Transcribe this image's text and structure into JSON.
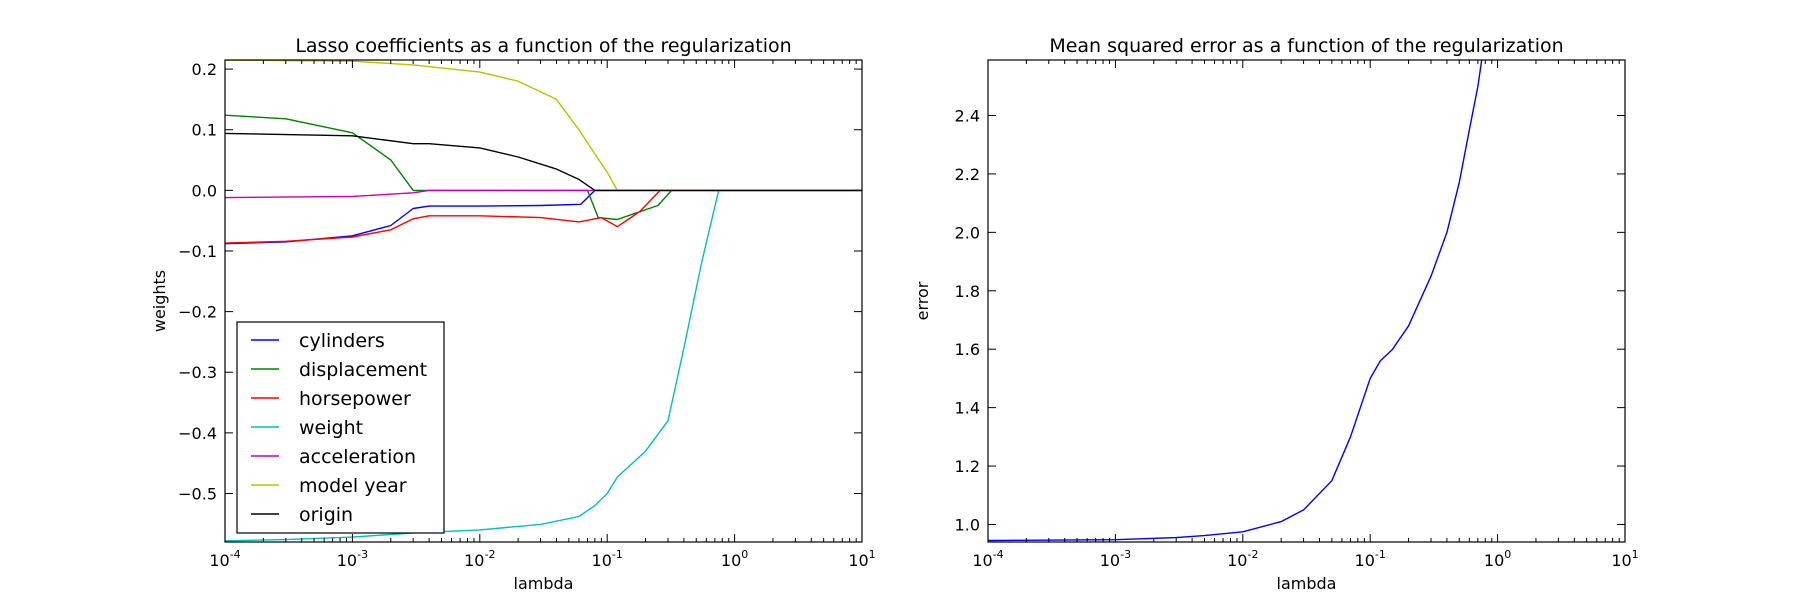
{
  "chart_data": [
    {
      "type": "line",
      "title": "Lasso coefficients as a function of the regularization",
      "xlabel": "lambda",
      "ylabel": "weights",
      "xscale": "log",
      "xlim": [
        0.0001,
        10
      ],
      "ylim": [
        -0.58,
        0.215
      ],
      "x_ticks": [
        {
          "base": "10",
          "exp": "-4",
          "value": 0.0001
        },
        {
          "base": "10",
          "exp": "-3",
          "value": 0.001
        },
        {
          "base": "10",
          "exp": "-2",
          "value": 0.01
        },
        {
          "base": "10",
          "exp": "-1",
          "value": 0.1
        },
        {
          "base": "10",
          "exp": "0",
          "value": 1
        },
        {
          "base": "10",
          "exp": "1",
          "value": 10
        }
      ],
      "y_ticks": [
        {
          "label": "0.2",
          "value": 0.2
        },
        {
          "label": "0.1",
          "value": 0.1
        },
        {
          "label": "0.0",
          "value": 0.0
        },
        {
          "label": "−0.1",
          "value": -0.1
        },
        {
          "label": "−0.2",
          "value": -0.2
        },
        {
          "label": "−0.3",
          "value": -0.3
        },
        {
          "label": "−0.4",
          "value": -0.4
        },
        {
          "label": "−0.5",
          "value": -0.5
        }
      ],
      "grid": false,
      "legend_position": "lower-left",
      "series": [
        {
          "name": "cylinders",
          "color": "#0000ff",
          "x": [
            0.0001,
            0.0003,
            0.001,
            0.002,
            0.003,
            0.004,
            0.01,
            0.03,
            0.062,
            0.08,
            0.1,
            0.3,
            1,
            10
          ],
          "y": [
            -0.088,
            -0.085,
            -0.075,
            -0.058,
            -0.03,
            -0.026,
            -0.026,
            -0.025,
            -0.023,
            0,
            0,
            0,
            0,
            0
          ]
        },
        {
          "name": "displacement",
          "color": "#008000",
          "x": [
            0.0001,
            0.0003,
            0.001,
            0.002,
            0.003,
            0.004,
            0.01,
            0.03,
            0.07,
            0.085,
            0.12,
            0.25,
            0.32,
            1,
            10
          ],
          "y": [
            0.124,
            0.118,
            0.095,
            0.05,
            0.0,
            0,
            0,
            0,
            0,
            -0.045,
            -0.048,
            -0.025,
            0,
            0,
            0
          ]
        },
        {
          "name": "horsepower",
          "color": "#ff0000",
          "x": [
            0.0001,
            0.0003,
            0.001,
            0.002,
            0.003,
            0.004,
            0.01,
            0.03,
            0.06,
            0.09,
            0.12,
            0.18,
            0.26,
            1,
            10
          ],
          "y": [
            -0.087,
            -0.084,
            -0.077,
            -0.065,
            -0.047,
            -0.042,
            -0.042,
            -0.045,
            -0.052,
            -0.045,
            -0.06,
            -0.035,
            0,
            0,
            0
          ]
        },
        {
          "name": "weight",
          "color": "#00bfbf",
          "x": [
            0.0001,
            0.0003,
            0.001,
            0.003,
            0.01,
            0.03,
            0.06,
            0.08,
            0.1,
            0.12,
            0.2,
            0.3,
            0.4,
            0.55,
            0.75,
            1,
            10
          ],
          "y": [
            -0.578,
            -0.576,
            -0.572,
            -0.565,
            -0.56,
            -0.551,
            -0.538,
            -0.52,
            -0.5,
            -0.473,
            -0.43,
            -0.38,
            -0.26,
            -0.12,
            0,
            0,
            0
          ]
        },
        {
          "name": "acceleration",
          "color": "#bf00bf",
          "x": [
            0.0001,
            0.001,
            0.003,
            0.004,
            0.01,
            0.1,
            1,
            10
          ],
          "y": [
            -0.012,
            -0.01,
            -0.004,
            0,
            0,
            0,
            0,
            0
          ]
        },
        {
          "name": "model year",
          "color": "#bfbf00",
          "x": [
            0.0001,
            0.001,
            0.003,
            0.01,
            0.02,
            0.04,
            0.06,
            0.08,
            0.1,
            0.12,
            1,
            10
          ],
          "y": [
            0.215,
            0.213,
            0.207,
            0.195,
            0.18,
            0.15,
            0.1,
            0.06,
            0.03,
            0.0,
            0,
            0
          ]
        },
        {
          "name": "origin",
          "color": "#000000",
          "x": [
            0.0001,
            0.001,
            0.003,
            0.004,
            0.01,
            0.02,
            0.04,
            0.06,
            0.08,
            0.1,
            1,
            10
          ],
          "y": [
            0.094,
            0.09,
            0.077,
            0.077,
            0.07,
            0.055,
            0.035,
            0.018,
            0.0,
            0,
            0,
            0
          ]
        }
      ]
    },
    {
      "type": "line",
      "title": "Mean squared error as a function of the regularization",
      "xlabel": "lambda",
      "ylabel": "error",
      "xscale": "log",
      "xlim": [
        0.0001,
        10
      ],
      "ylim": [
        0.94,
        2.59
      ],
      "x_ticks": [
        {
          "base": "10",
          "exp": "-4",
          "value": 0.0001
        },
        {
          "base": "10",
          "exp": "-3",
          "value": 0.001
        },
        {
          "base": "10",
          "exp": "-2",
          "value": 0.01
        },
        {
          "base": "10",
          "exp": "-1",
          "value": 0.1
        },
        {
          "base": "10",
          "exp": "0",
          "value": 1
        },
        {
          "base": "10",
          "exp": "1",
          "value": 10
        }
      ],
      "y_ticks": [
        {
          "label": "1.0",
          "value": 1.0
        },
        {
          "label": "1.2",
          "value": 1.2
        },
        {
          "label": "1.4",
          "value": 1.4
        },
        {
          "label": "1.6",
          "value": 1.6
        },
        {
          "label": "1.8",
          "value": 1.8
        },
        {
          "label": "2.0",
          "value": 2.0
        },
        {
          "label": "2.2",
          "value": 2.2
        },
        {
          "label": "2.4",
          "value": 2.4
        }
      ],
      "grid": false,
      "series": [
        {
          "color": "#0000ff",
          "x": [
            0.0001,
            0.001,
            0.003,
            0.005,
            0.01,
            0.02,
            0.03,
            0.05,
            0.07,
            0.1,
            0.12,
            0.15,
            0.2,
            0.3,
            0.4,
            0.5,
            0.6,
            0.7,
            0.75
          ],
          "y": [
            0.945,
            0.948,
            0.955,
            0.962,
            0.975,
            1.01,
            1.05,
            1.15,
            1.3,
            1.5,
            1.56,
            1.6,
            1.68,
            1.85,
            2.0,
            2.17,
            2.35,
            2.5,
            2.59
          ]
        }
      ]
    }
  ]
}
